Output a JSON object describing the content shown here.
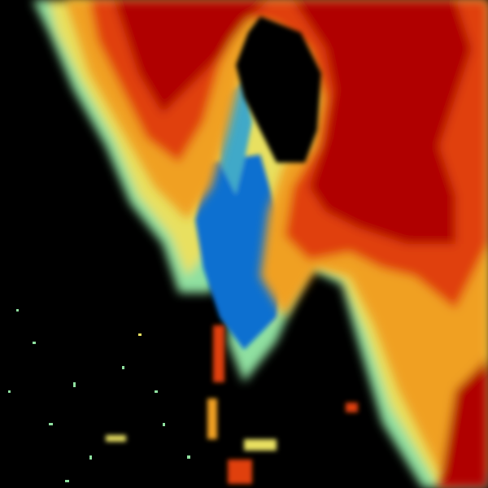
{
  "image": {
    "kind": "weather-radar-reflectivity",
    "background_color": "#000000",
    "palette": {
      "lowest": "#0a6fd0",
      "low": "#3fa9c8",
      "light": "#8fe0a0",
      "moderate": "#e8e060",
      "heavy": "#f0a020",
      "intense": "#e04010",
      "extreme": "#b00000"
    }
  }
}
